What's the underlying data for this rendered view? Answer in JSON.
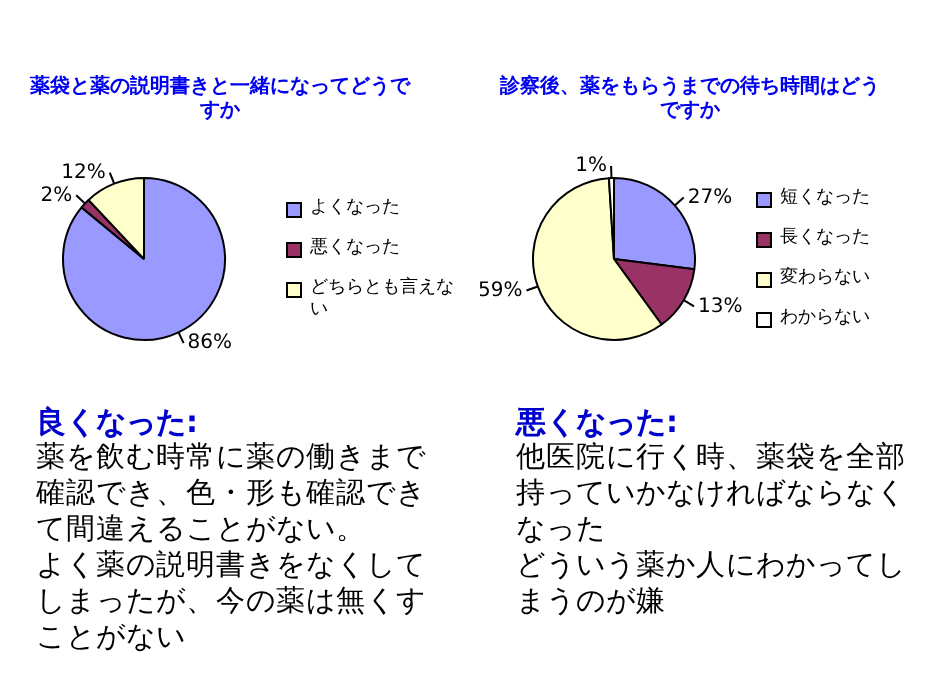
{
  "chart_data": [
    {
      "type": "pie",
      "title": "薬袋と薬の説明書きと一緒になってどうですか",
      "categories": [
        "よくなった",
        "悪くなった",
        "どちらとも言えない"
      ],
      "values": [
        86,
        2,
        12
      ],
      "colors": [
        "#9999ff",
        "#993366",
        "#ffffcc"
      ],
      "value_labels": [
        "86%",
        "2%",
        "12%"
      ],
      "legend": "right"
    },
    {
      "type": "pie",
      "title": "診察後、薬をもらうまでの待ち時間はどうですか",
      "categories": [
        "短くなった",
        "長くなった",
        "変わらない",
        "わからない"
      ],
      "values": [
        27,
        13,
        59,
        1
      ],
      "colors": [
        "#9999ff",
        "#993366",
        "#ffffcc",
        "#ffffff"
      ],
      "value_labels": [
        "27%",
        "13%",
        "59%",
        "1%"
      ],
      "legend": "right"
    },
    {
      "type": "other",
      "title": "良くなった:",
      "annotations": [
        "薬を飲む時常に薬の働きまで確認でき、色・形も確認できて間違えることがない。",
        "よく薬の説明書きをなくしてしまったが、今の薬は無くすことがない"
      ]
    },
    {
      "type": "other",
      "title": "悪くなった:",
      "annotations": [
        "他医院に行く時、薬袋を全部持っていかなければならなくなった",
        "どういう薬か人にわかってしまうのが嫌"
      ]
    }
  ]
}
